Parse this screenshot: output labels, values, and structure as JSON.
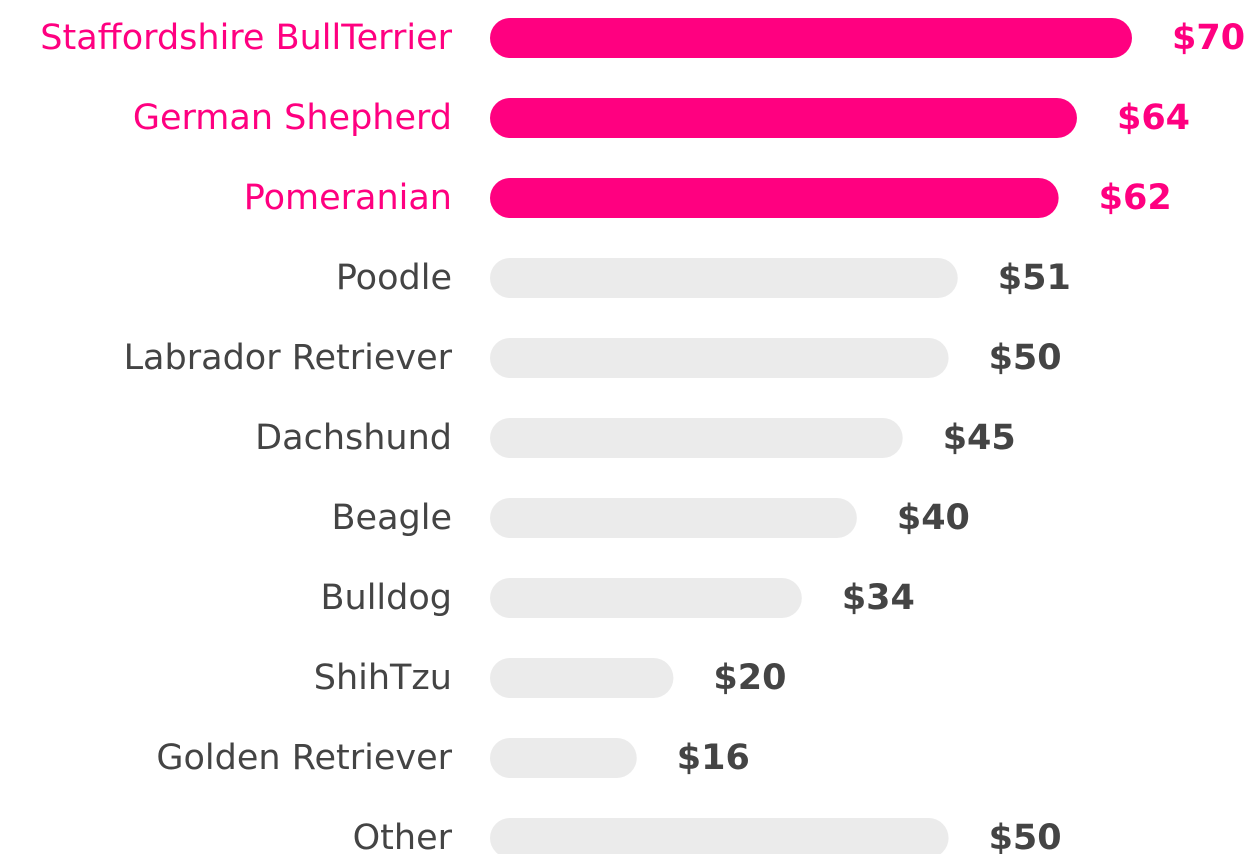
{
  "chart_data": {
    "type": "bar",
    "orientation": "horizontal",
    "categories": [
      "Staffordshire BullTerrier",
      "German Shepherd",
      "Pomeranian",
      "Poodle",
      "Labrador Retriever",
      "Dachshund",
      "Beagle",
      "Bulldog",
      "ShihTzu",
      "Golden Retriever",
      "Other"
    ],
    "values": [
      70,
      64,
      62,
      51,
      50,
      45,
      40,
      34,
      20,
      16,
      50
    ],
    "value_labels": [
      "$70",
      "$64",
      "$62",
      "$51",
      "$50",
      "$45",
      "$40",
      "$34",
      "$20",
      "$16",
      "$50"
    ],
    "colors": [
      "#ff0080",
      "#ff0080",
      "#ff0080",
      "#ebebeb",
      "#ebebeb",
      "#ebebeb",
      "#ebebeb",
      "#ebebeb",
      "#ebebeb",
      "#ebebeb",
      "#ebebeb"
    ],
    "label_colors": [
      "#ff0080",
      "#ff0080",
      "#ff0080",
      "#444444",
      "#444444",
      "#444444",
      "#444444",
      "#444444",
      "#444444",
      "#444444",
      "#444444"
    ]
  }
}
